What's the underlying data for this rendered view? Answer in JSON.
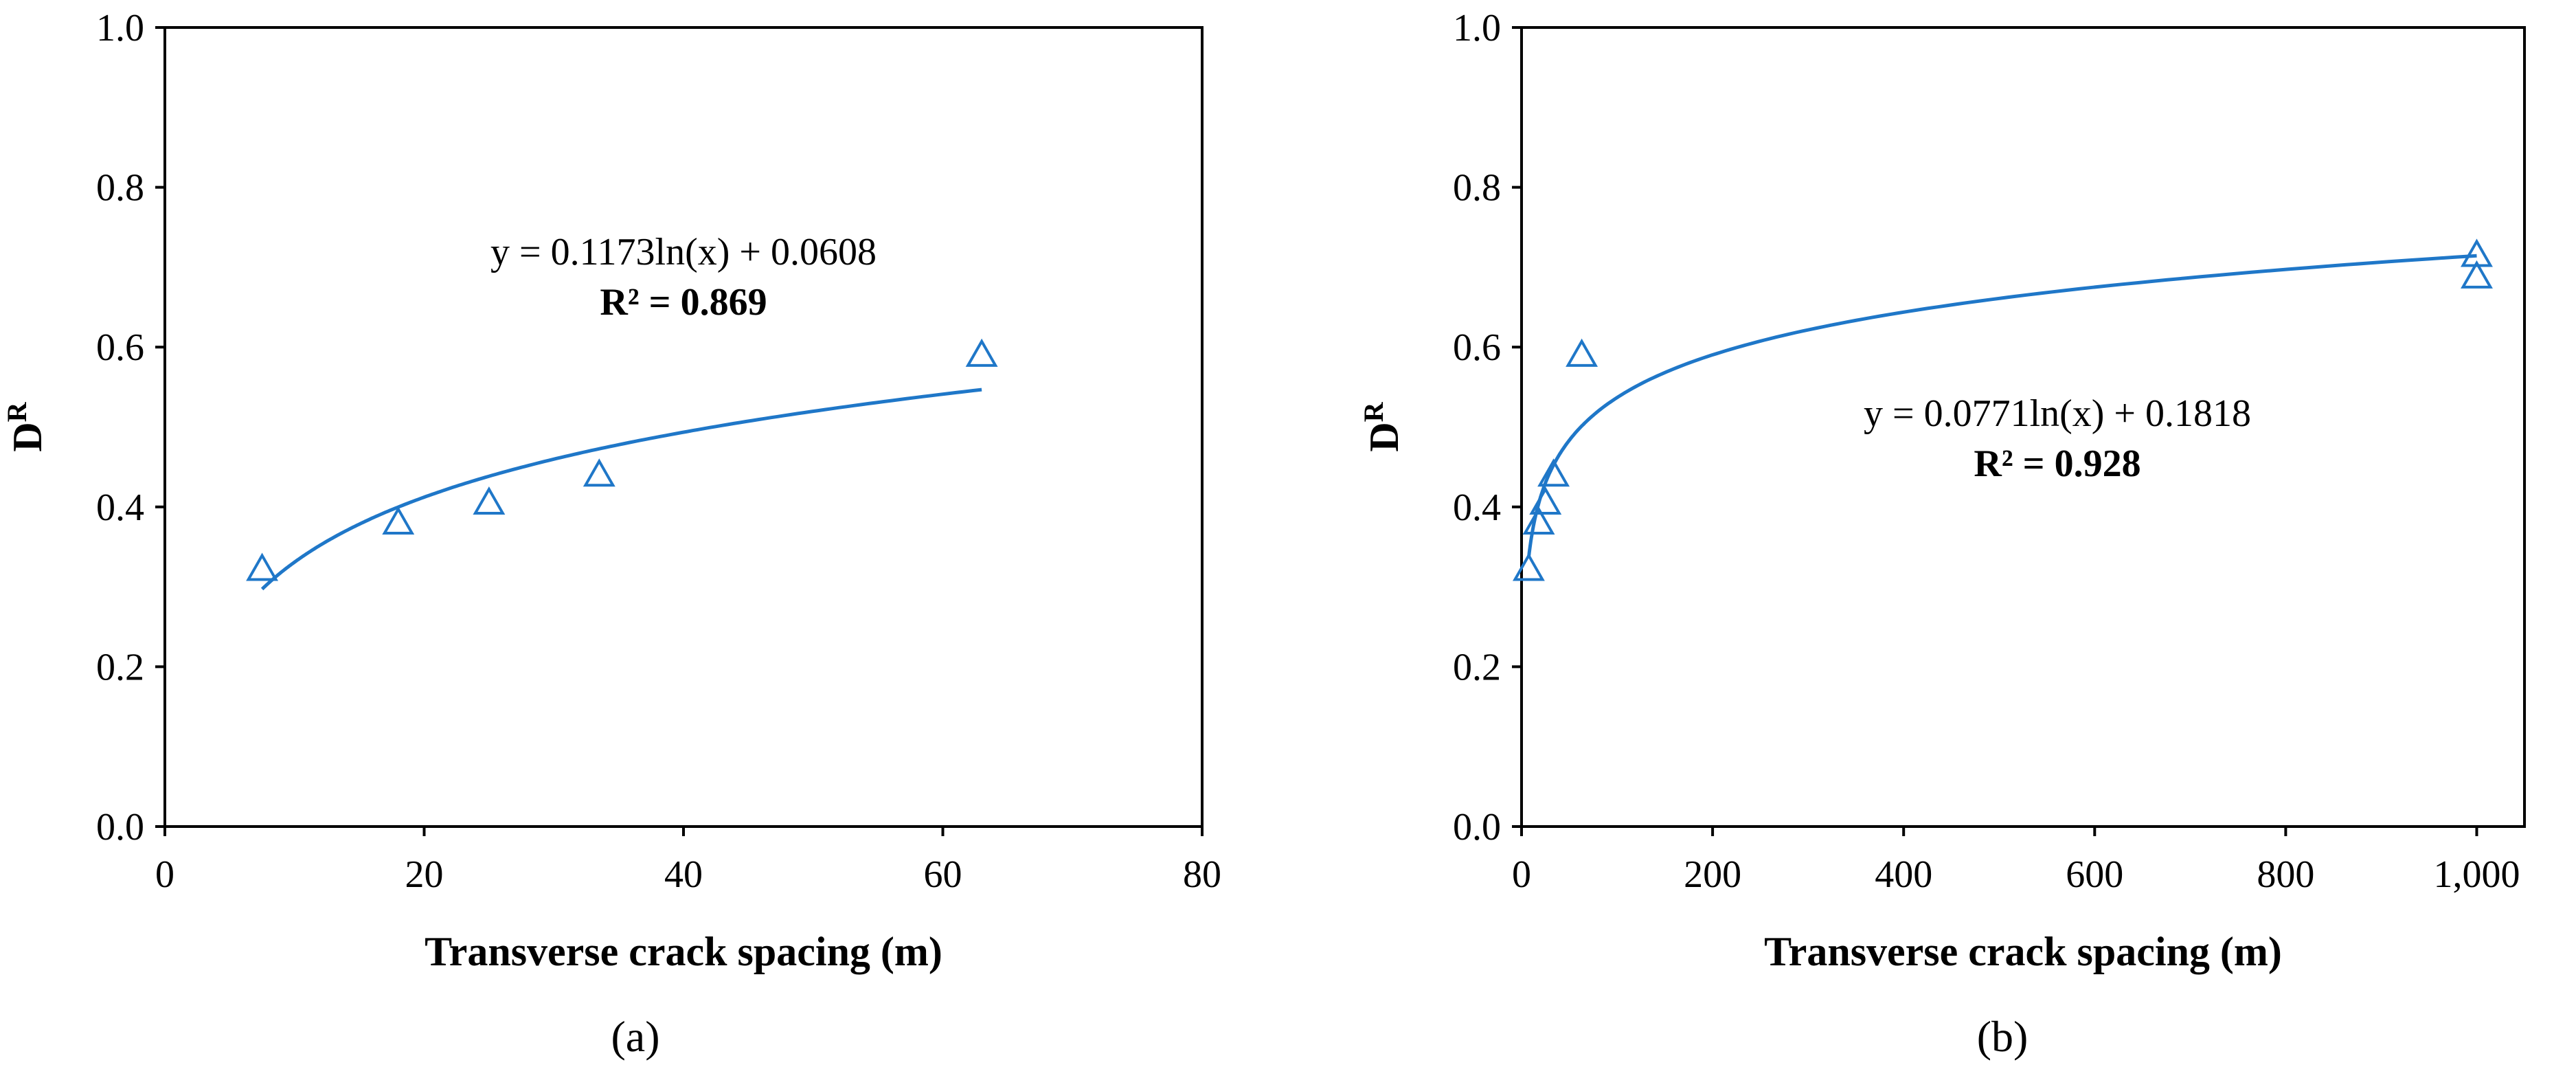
{
  "chart_data": [
    {
      "type": "scatter",
      "panel": "a",
      "xlabel": "Transverse crack spacing (m)",
      "ylabel": "D",
      "ylabel_sup": "R",
      "xlim": [
        0,
        80
      ],
      "ylim": [
        0.0,
        1.0
      ],
      "x_ticks": [
        "0",
        "20",
        "40",
        "60",
        "80"
      ],
      "y_ticks": [
        "0.0",
        "0.2",
        "0.4",
        "0.6",
        "0.8",
        "1.0"
      ],
      "x_tick_values": [
        0,
        20,
        40,
        60,
        80
      ],
      "y_tick_values": [
        0.0,
        0.2,
        0.4,
        0.6,
        0.8,
        1.0
      ],
      "series": [
        {
          "name": "data",
          "marker": "triangle-open",
          "x": [
            7.5,
            18,
            25,
            33.5,
            63
          ],
          "y": [
            0.322,
            0.38,
            0.405,
            0.44,
            0.59
          ]
        }
      ],
      "trendline": {
        "kind": "log",
        "a": 0.1173,
        "b": 0.0608,
        "x_range": [
          7.5,
          63
        ]
      },
      "equation": "y = 0.1173ln(x) + 0.0608",
      "r2_label": "R² = 0.869",
      "panel_label": "(a)",
      "color": "#1f77c8"
    },
    {
      "type": "scatter",
      "panel": "b",
      "xlabel": "Transverse crack spacing (m)",
      "ylabel": "D",
      "ylabel_sup": "R",
      "xlim": [
        0,
        1050
      ],
      "ylim": [
        0.0,
        1.0
      ],
      "x_ticks": [
        "0",
        "200",
        "400",
        "600",
        "800",
        "1,000"
      ],
      "y_ticks": [
        "0.0",
        "0.2",
        "0.4",
        "0.6",
        "0.8",
        "1.0"
      ],
      "x_tick_values": [
        0,
        200,
        400,
        600,
        800,
        1000
      ],
      "y_tick_values": [
        0.0,
        0.2,
        0.4,
        0.6,
        0.8,
        1.0
      ],
      "series": [
        {
          "name": "data",
          "marker": "triangle-open",
          "x": [
            7.5,
            18,
            25,
            33.5,
            63,
            1000,
            1000
          ],
          "y": [
            0.322,
            0.38,
            0.405,
            0.44,
            0.59,
            0.715,
            0.688
          ]
        }
      ],
      "trendline": {
        "kind": "log",
        "a": 0.0771,
        "b": 0.1818,
        "x_range": [
          7.5,
          1000
        ]
      },
      "equation": "y = 0.0771ln(x) + 0.1818",
      "r2_label": "R² = 0.928",
      "panel_label": "(b)",
      "color": "#1f77c8"
    }
  ]
}
